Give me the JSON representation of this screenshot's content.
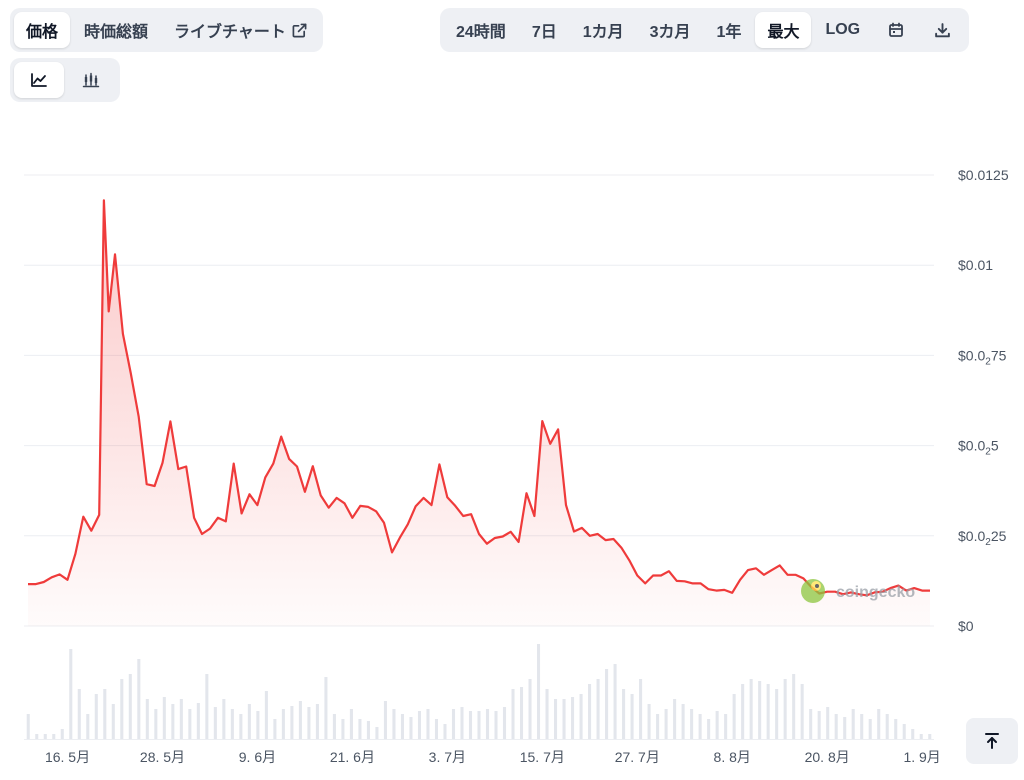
{
  "metric_tabs": [
    {
      "label": "価格",
      "active": true
    },
    {
      "label": "時価総額",
      "active": false
    },
    {
      "label": "ライブチャート",
      "active": false,
      "icon": "external-link-icon"
    }
  ],
  "range_tabs": [
    {
      "label": "24時間",
      "active": false
    },
    {
      "label": "7日",
      "active": false
    },
    {
      "label": "1カ月",
      "active": false
    },
    {
      "label": "3カ月",
      "active": false
    },
    {
      "label": "1年",
      "active": false
    },
    {
      "label": "最大",
      "active": true
    },
    {
      "label": "LOG",
      "active": false
    }
  ],
  "toolbar_icons": [
    "calendar-icon",
    "download-icon"
  ],
  "chart_type_icons": [
    "line-chart-icon",
    "candlestick-icon"
  ],
  "watermark": "coingecko",
  "colors": {
    "line": "#ef3b3b",
    "volume": "#e3e6ec",
    "grid": "#eceef2"
  },
  "chart_data": {
    "type": "line",
    "y_tick_labels": [
      {
        "value": 0.0125,
        "base": "$0.0125",
        "sub": "",
        "rest": ""
      },
      {
        "value": 0.01,
        "base": "$0.01",
        "sub": "",
        "rest": ""
      },
      {
        "value": 0.0075,
        "base": "$0.0",
        "sub": "2",
        "rest": "75"
      },
      {
        "value": 0.005,
        "base": "$0.0",
        "sub": "2",
        "rest": "5"
      },
      {
        "value": 0.0025,
        "base": "$0.0",
        "sub": "2",
        "rest": "25"
      },
      {
        "value": 0,
        "base": "$0",
        "sub": "",
        "rest": ""
      }
    ],
    "ylim": [
      0,
      0.0125
    ],
    "x_tick_labels": [
      {
        "label": "16. 5月",
        "t": 5
      },
      {
        "label": "28. 5月",
        "t": 17
      },
      {
        "label": "9. 6月",
        "t": 29
      },
      {
        "label": "21. 6月",
        "t": 41
      },
      {
        "label": "3. 7月",
        "t": 53
      },
      {
        "label": "15. 7月",
        "t": 65
      },
      {
        "label": "27. 7月",
        "t": 77
      },
      {
        "label": "8. 8月",
        "t": 89
      },
      {
        "label": "20. 8月",
        "t": 101
      },
      {
        "label": "1. 9月",
        "t": 113
      }
    ],
    "xlim": [
      -0.5,
      114.5
    ],
    "series": [
      {
        "t": [
          0,
          1,
          2,
          3,
          4,
          5,
          6,
          7,
          8,
          9,
          9.6,
          10.2,
          11,
          12,
          13,
          14,
          15,
          16,
          17,
          18,
          19,
          20,
          21,
          22,
          23,
          24,
          25,
          26,
          27,
          28,
          29,
          30,
          31,
          32,
          33,
          34,
          35,
          36,
          37,
          38,
          39,
          40,
          41,
          42,
          43,
          44,
          45,
          46,
          47,
          48,
          49,
          50,
          51,
          52,
          53,
          54,
          55,
          56,
          57,
          58,
          59,
          60,
          61,
          62,
          63,
          64,
          65,
          66,
          67,
          68,
          69,
          70,
          71,
          72,
          73,
          74,
          75,
          76,
          77,
          78,
          79,
          80,
          81,
          82,
          83,
          84,
          85,
          86,
          87,
          88,
          89,
          90,
          91,
          92,
          93,
          94,
          95,
          96,
          97,
          98,
          99,
          100,
          101,
          102,
          103,
          104,
          105,
          106,
          107,
          108,
          109,
          110,
          111,
          112,
          113,
          114
        ],
        "values": [
          0.00116,
          0.00116,
          0.00122,
          0.00135,
          0.00143,
          0.00128,
          0.002,
          0.00303,
          0.00264,
          0.00308,
          0.0118,
          0.00872,
          0.0103,
          0.0081,
          0.007,
          0.0058,
          0.00393,
          0.00388,
          0.00452,
          0.00567,
          0.00435,
          0.00442,
          0.003,
          0.00255,
          0.0027,
          0.003,
          0.0029,
          0.0045,
          0.00312,
          0.00365,
          0.00335,
          0.00412,
          0.0045,
          0.00525,
          0.00463,
          0.00442,
          0.00372,
          0.00443,
          0.00362,
          0.00328,
          0.00355,
          0.0034,
          0.003,
          0.00333,
          0.0033,
          0.00318,
          0.00286,
          0.00204,
          0.00245,
          0.00282,
          0.00332,
          0.00355,
          0.00335,
          0.00448,
          0.00357,
          0.00333,
          0.00305,
          0.0031,
          0.00255,
          0.00228,
          0.00244,
          0.00248,
          0.00261,
          0.00233,
          0.00368,
          0.00305,
          0.00568,
          0.00505,
          0.00545,
          0.00335,
          0.00262,
          0.00272,
          0.0025,
          0.00255,
          0.00238,
          0.00241,
          0.00217,
          0.00182,
          0.0014,
          0.00118,
          0.0014,
          0.0014,
          0.00152,
          0.00125,
          0.00124,
          0.00118,
          0.00118,
          0.00102,
          0.00098,
          0.001,
          0.00092,
          0.00128,
          0.00155,
          0.0016,
          0.00142,
          0.00155,
          0.00168,
          0.00142,
          0.00142,
          0.00132,
          0.00108,
          0.0009,
          0.00095,
          0.00095,
          0.00088,
          0.00093,
          0.00088,
          0.00085,
          0.00093,
          0.00095,
          0.00105,
          0.00112,
          0.00098,
          0.00105,
          0.00098,
          0.00098
        ]
      }
    ],
    "volume": [
      0.25,
      0.05,
      0.05,
      0.05,
      0.1,
      0.9,
      0.5,
      0.25,
      0.45,
      0.5,
      0.35,
      0.6,
      0.65,
      0.8,
      0.4,
      0.3,
      0.42,
      0.35,
      0.4,
      0.3,
      0.36,
      0.65,
      0.32,
      0.4,
      0.3,
      0.25,
      0.35,
      0.28,
      0.48,
      0.2,
      0.3,
      0.33,
      0.38,
      0.32,
      0.35,
      0.62,
      0.25,
      0.2,
      0.3,
      0.2,
      0.18,
      0.12,
      0.38,
      0.3,
      0.25,
      0.22,
      0.28,
      0.3,
      0.2,
      0.15,
      0.3,
      0.32,
      0.28,
      0.28,
      0.3,
      0.28,
      0.32,
      0.5,
      0.52,
      0.6,
      0.95,
      0.5,
      0.4,
      0.4,
      0.42,
      0.45,
      0.55,
      0.6,
      0.7,
      0.75,
      0.5,
      0.45,
      0.6,
      0.35,
      0.25,
      0.3,
      0.4,
      0.35,
      0.3,
      0.25,
      0.2,
      0.28,
      0.25,
      0.45,
      0.55,
      0.6,
      0.58,
      0.55,
      0.5,
      0.6,
      0.65,
      0.55,
      0.3,
      0.28,
      0.32,
      0.25,
      0.22,
      0.3,
      0.25,
      0.2,
      0.3,
      0.25,
      0.2,
      0.15,
      0.1,
      0.05,
      0.05
    ],
    "grid": true,
    "legend": "none"
  }
}
